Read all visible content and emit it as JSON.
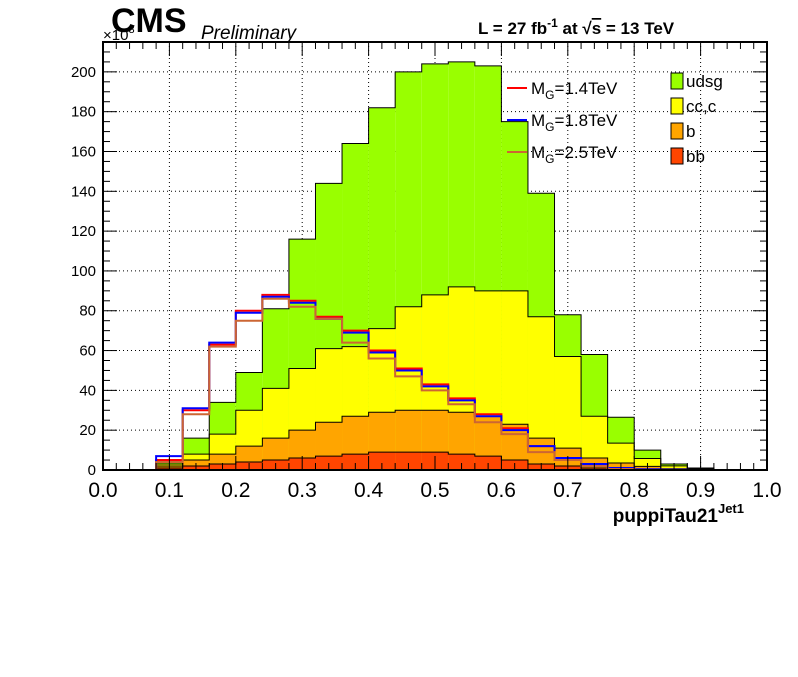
{
  "header": {
    "experiment": "CMS",
    "status": "Preliminary",
    "lumi_prefix": "L = 27 fb",
    "lumi_exp": "-1",
    "lumi_mid": " at  √",
    "lumi_s": "s",
    "lumi_energy": " = 13 TeV"
  },
  "chart_data": {
    "type": "bar",
    "stacked": true,
    "xlabel": "puppiTau21",
    "xlabel_sup": "Jet1",
    "y_multiplier_base": "×10",
    "y_multiplier_exp": "3",
    "xlim": [
      0,
      1
    ],
    "ylim": [
      0,
      215
    ],
    "xticks": [
      "0.0",
      "0.1",
      "0.2",
      "0.3",
      "0.4",
      "0.5",
      "0.6",
      "0.7",
      "0.8",
      "0.9",
      "1.0"
    ],
    "yticks": [
      "0",
      "20",
      "40",
      "60",
      "80",
      "100",
      "120",
      "140",
      "160",
      "180",
      "200"
    ],
    "grid": true,
    "bin_edges": [
      0,
      0.04,
      0.08,
      0.12,
      0.16,
      0.2,
      0.24,
      0.28,
      0.32,
      0.36,
      0.4,
      0.44,
      0.48,
      0.52,
      0.56,
      0.6,
      0.64,
      0.68,
      0.72,
      0.76,
      0.8,
      0.84,
      0.88,
      0.92,
      0.96,
      1.0
    ],
    "series": [
      {
        "name": "bb",
        "color": "#ff4500",
        "values": [
          0,
          0,
          1,
          2,
          3,
          4,
          5,
          6,
          7,
          8,
          9,
          9,
          9,
          8,
          7,
          5,
          3,
          2,
          1,
          0.5,
          0.3,
          0.1,
          0,
          0,
          0
        ]
      },
      {
        "name": "b",
        "color": "#ffa500",
        "values": [
          0,
          0,
          1,
          3,
          5,
          8,
          11,
          14,
          17,
          19,
          20,
          21,
          21,
          21,
          20,
          18,
          13,
          9,
          5,
          3,
          1.5,
          0.5,
          0.2,
          0,
          0
        ]
      },
      {
        "name": "cc,c",
        "color": "#ffff00",
        "values": [
          0,
          0,
          1,
          3,
          10,
          18,
          25,
          31,
          37,
          35,
          42,
          52,
          58,
          63,
          63,
          67,
          61,
          46,
          21,
          10,
          4,
          1.5,
          0.5,
          0,
          0
        ]
      },
      {
        "name": "udsg",
        "color": "#99ff00",
        "values": [
          0,
          0,
          1,
          8,
          16,
          19,
          40,
          65,
          83,
          102,
          111,
          118,
          116,
          113,
          113,
          85,
          62,
          21,
          31,
          13,
          4.2,
          0.9,
          0.3,
          0,
          0
        ]
      }
    ],
    "signals": [
      {
        "name": "M_G=1.4TeV",
        "label_main": "M",
        "label_sub": "G",
        "label_rest": "=1.4TeV",
        "color": "#ff0000",
        "values": [
          0,
          0,
          5,
          30,
          63,
          80,
          88,
          85,
          77,
          70,
          60,
          51,
          43,
          36,
          28,
          21,
          12,
          6,
          3,
          1,
          0.5,
          0.2,
          0,
          0,
          0
        ]
      },
      {
        "name": "M_G=1.8TeV",
        "label_main": "M",
        "label_sub": "G",
        "label_rest": "=1.8TeV",
        "color": "#0000ff",
        "values": [
          0,
          0,
          7,
          31,
          64,
          79,
          87,
          84,
          76,
          69,
          59,
          50,
          42,
          35,
          27,
          20,
          12,
          6,
          3,
          1,
          0.5,
          0.2,
          0,
          0,
          0
        ]
      },
      {
        "name": "M_G=2.5TeV",
        "label_main": "M",
        "label_sub": "G",
        "label_rest": "=2.5TeV",
        "color": "#cc6633",
        "values": [
          0,
          0,
          4,
          28,
          62,
          75,
          86,
          82,
          76,
          64,
          56,
          47,
          40,
          33,
          24,
          18,
          9,
          5,
          2,
          0.5,
          0.2,
          0,
          0,
          0,
          0
        ]
      }
    ]
  }
}
